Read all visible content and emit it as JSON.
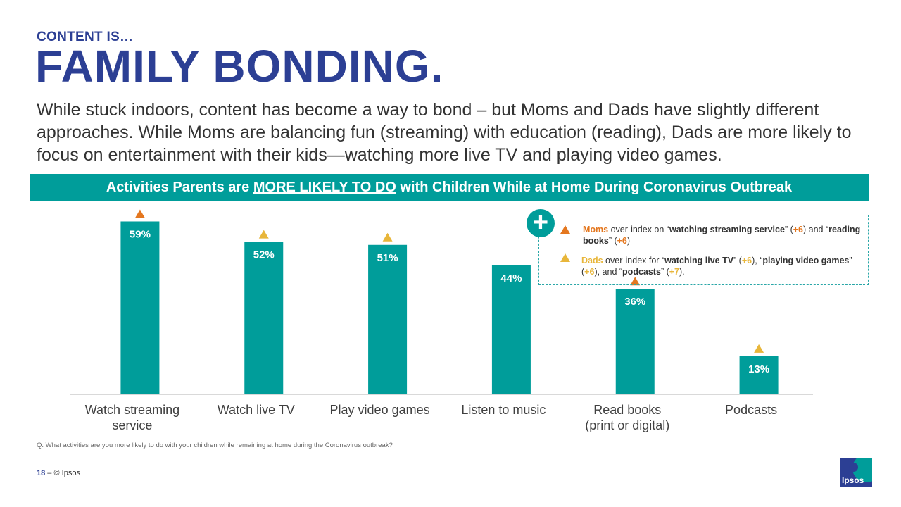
{
  "header": {
    "kicker": "CONTENT IS…",
    "title": "FAMILY BONDING.",
    "intro": "While stuck indoors, content has become a way to bond – but Moms and Dads have slightly different approaches. While Moms are balancing fun (streaming) with education (reading), Dads are more likely to focus on entertainment with their kids—watching more live TV and playing video games."
  },
  "banner": {
    "before": "Activities Parents are ",
    "emph": "MORE LIKELY TO DO",
    "after": " with Children While at Home During Coronavirus Outbreak"
  },
  "legend": {
    "plus": "+",
    "moms": {
      "who": "Moms",
      "t1": " over-index on “",
      "k1": "watching streaming service",
      "t2": "” (",
      "v1": "+6",
      "t3": ") and “",
      "k2": "reading books",
      "t4": "” (",
      "v2": "+6",
      "t5": ")"
    },
    "dads": {
      "who": "Dads",
      "t1": " over-index for “",
      "k1": "watching live TV",
      "t2": "” (",
      "v1": "+6",
      "t3": "), “",
      "k2": "playing video games",
      "t4": "” (",
      "v2": "+6",
      "t5": "), and “",
      "k3": "podcasts",
      "t6": "” (",
      "v3": "+7",
      "t7": ")."
    }
  },
  "chart_data": {
    "type": "bar",
    "title": "Activities Parents are MORE LIKELY TO DO with Children While at Home During Coronavirus Outbreak",
    "categories": [
      [
        "Watch streaming",
        "service"
      ],
      [
        "Watch live TV"
      ],
      [
        "Play video games"
      ],
      [
        "Listen to music"
      ],
      [
        "Read books",
        "(print or digital)"
      ],
      [
        "Podcasts"
      ]
    ],
    "values": [
      59,
      52,
      51,
      44,
      36,
      13
    ],
    "labels": [
      "59%",
      "52%",
      "51%",
      "44%",
      "36%",
      "13%"
    ],
    "markers": [
      "moms",
      "dads",
      "dads",
      "none",
      "moms",
      "dads"
    ],
    "ylim": [
      0,
      62
    ],
    "bar_color": "#009d9a",
    "moms_color": "#e4771f",
    "dads_color": "#e8b63a",
    "xlabel": "",
    "ylabel": ""
  },
  "footnote": "Q. What activities are you more likely to do with your children while remaining at home during the Coronavirus outbreak?",
  "footer": {
    "page": "18",
    "dash": " –  ",
    "copyright": "© Ipsos"
  },
  "logo": {
    "text": "Ipsos"
  }
}
